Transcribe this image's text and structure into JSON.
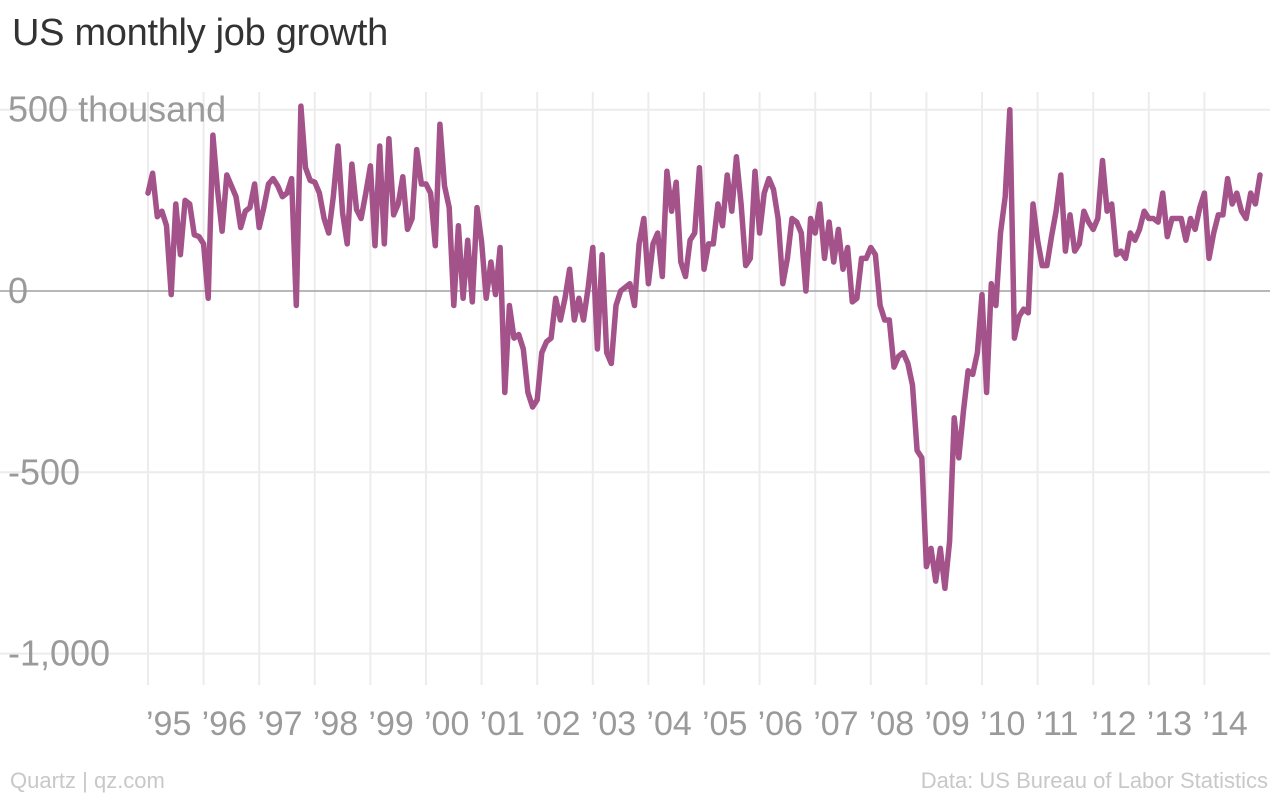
{
  "chart_data": {
    "type": "line",
    "title": "US monthly job growth",
    "xlabel": "",
    "ylabel": "",
    "x_start": "1995-01",
    "x_tick_labels": [
      "’95",
      "’96",
      "’97",
      "’98",
      "’99",
      "’00",
      "’01",
      "’02",
      "’03",
      "’04",
      "’05",
      "’06",
      "’07",
      "’08",
      "’09",
      "’10",
      "’11",
      "’12",
      "’13",
      "’14"
    ],
    "y_ticks": [
      {
        "value": 500,
        "label": "500 thousand"
      },
      {
        "value": 0,
        "label": "0"
      },
      {
        "value": -500,
        "label": "-500"
      },
      {
        "value": -1000,
        "label": "-1,000"
      }
    ],
    "ylim": [
      -1050,
      520
    ],
    "grid": true,
    "colors": {
      "line": "#a3528a",
      "grid": "#ececec",
      "zero_line": "#a0a0a0",
      "tick_label": "#9a9a9a"
    },
    "series": [
      {
        "values": [
          270,
          325,
          205,
          220,
          180,
          -10,
          240,
          100,
          250,
          240,
          155,
          150,
          130,
          -20,
          430,
          280,
          165,
          320,
          290,
          260,
          175,
          220,
          230,
          295,
          175,
          230,
          295,
          310,
          290,
          260,
          270,
          310,
          -40,
          510,
          340,
          305,
          300,
          270,
          200,
          160,
          260,
          400,
          215,
          130,
          350,
          225,
          200,
          270,
          345,
          125,
          400,
          130,
          420,
          210,
          240,
          315,
          170,
          200,
          390,
          295,
          295,
          270,
          125,
          460,
          290,
          230,
          -40,
          180,
          -20,
          140,
          -30,
          230,
          135,
          -20,
          80,
          -10,
          120,
          -280,
          -40,
          -130,
          -120,
          -160,
          -280,
          -320,
          -300,
          -170,
          -140,
          -130,
          -20,
          -80,
          -20,
          60,
          -80,
          -20,
          -80,
          10,
          120,
          -160,
          100,
          -170,
          -200,
          -40,
          0,
          10,
          20,
          -40,
          130,
          200,
          20,
          130,
          160,
          40,
          330,
          220,
          300,
          80,
          40,
          140,
          160,
          340,
          60,
          130,
          130,
          240,
          180,
          320,
          220,
          370,
          240,
          70,
          90,
          330,
          160,
          270,
          310,
          280,
          200,
          20,
          90,
          200,
          190,
          160,
          0,
          200,
          160,
          240,
          90,
          190,
          80,
          170,
          60,
          120,
          -30,
          -20,
          90,
          90,
          120,
          100,
          -40,
          -80,
          -80,
          -210,
          -180,
          -170,
          -200,
          -260,
          -440,
          -460,
          -760,
          -710,
          -800,
          -710,
          -820,
          -690,
          -350,
          -460,
          -330,
          -220,
          -230,
          -170,
          -10,
          -280,
          20,
          -40,
          160,
          260,
          500,
          -130,
          -70,
          -50,
          -60,
          240,
          140,
          70,
          70,
          150,
          220,
          320,
          110,
          210,
          110,
          130,
          220,
          190,
          170,
          200,
          360,
          220,
          240,
          100,
          110,
          90,
          160,
          140,
          170,
          220,
          200,
          200,
          190,
          270,
          150,
          200,
          200,
          200,
          140,
          200,
          170,
          230,
          270,
          90,
          160,
          210,
          210,
          310,
          240,
          270,
          220,
          200,
          270,
          240,
          320
        ]
      }
    ]
  },
  "footer": {
    "left": "Quartz | qz.com",
    "right": "Data: US Bureau of Labor Statistics"
  }
}
